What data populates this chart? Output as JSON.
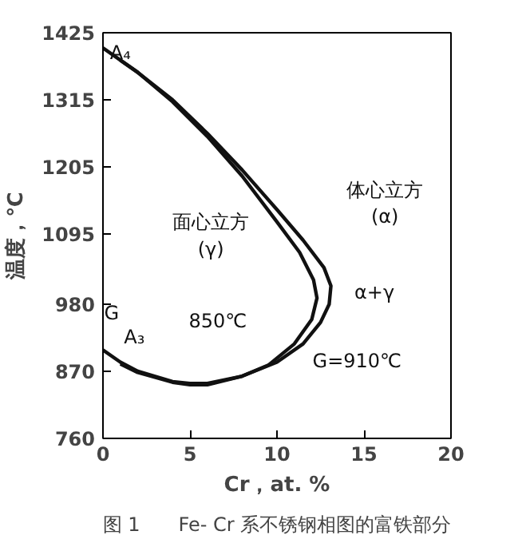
{
  "chart_data": {
    "type": "line",
    "xlabel": "Cr，at. %",
    "ylabel": "温度，℃",
    "xlim": [
      0,
      20
    ],
    "xticks": [
      0,
      5,
      10,
      15,
      20
    ],
    "ylim": [
      760,
      1425
    ],
    "yticks": [
      760,
      870,
      980,
      1095,
      1205,
      1315,
      1425
    ],
    "grid": false,
    "marker": "none",
    "line_style": "solid",
    "series": [
      {
        "color": "#111111",
        "x": [
          0,
          2,
          4,
          6,
          8,
          10,
          11.5,
          12.7,
          13.1,
          13.0,
          12.5,
          11.5,
          10,
          8,
          6,
          5,
          4,
          2,
          1,
          0
        ],
        "values": [
          1400,
          1360,
          1315,
          1260,
          1200,
          1135,
          1085,
          1040,
          1010,
          980,
          950,
          915,
          885,
          862,
          850,
          850,
          853,
          870,
          885,
          905
        ]
      },
      {
        "color": "#111111",
        "x": [
          1,
          2,
          4,
          6,
          8,
          10,
          11.3,
          12.1,
          12.3,
          12.0,
          11,
          9.5,
          8,
          6,
          5,
          4,
          2,
          1
        ],
        "values": [
          1380,
          1360,
          1312,
          1255,
          1190,
          1115,
          1065,
          1020,
          990,
          955,
          915,
          880,
          862,
          848,
          848,
          852,
          868,
          882
        ]
      }
    ],
    "annotations": [
      "A₄",
      "A₃",
      "G",
      "面心立方\n(γ)",
      "体心立方\n(α)",
      "α+γ",
      "850℃",
      "G=910℃",
      "图 1　　Fe- Cr 系不锈钢相图的富铁部分"
    ]
  }
}
